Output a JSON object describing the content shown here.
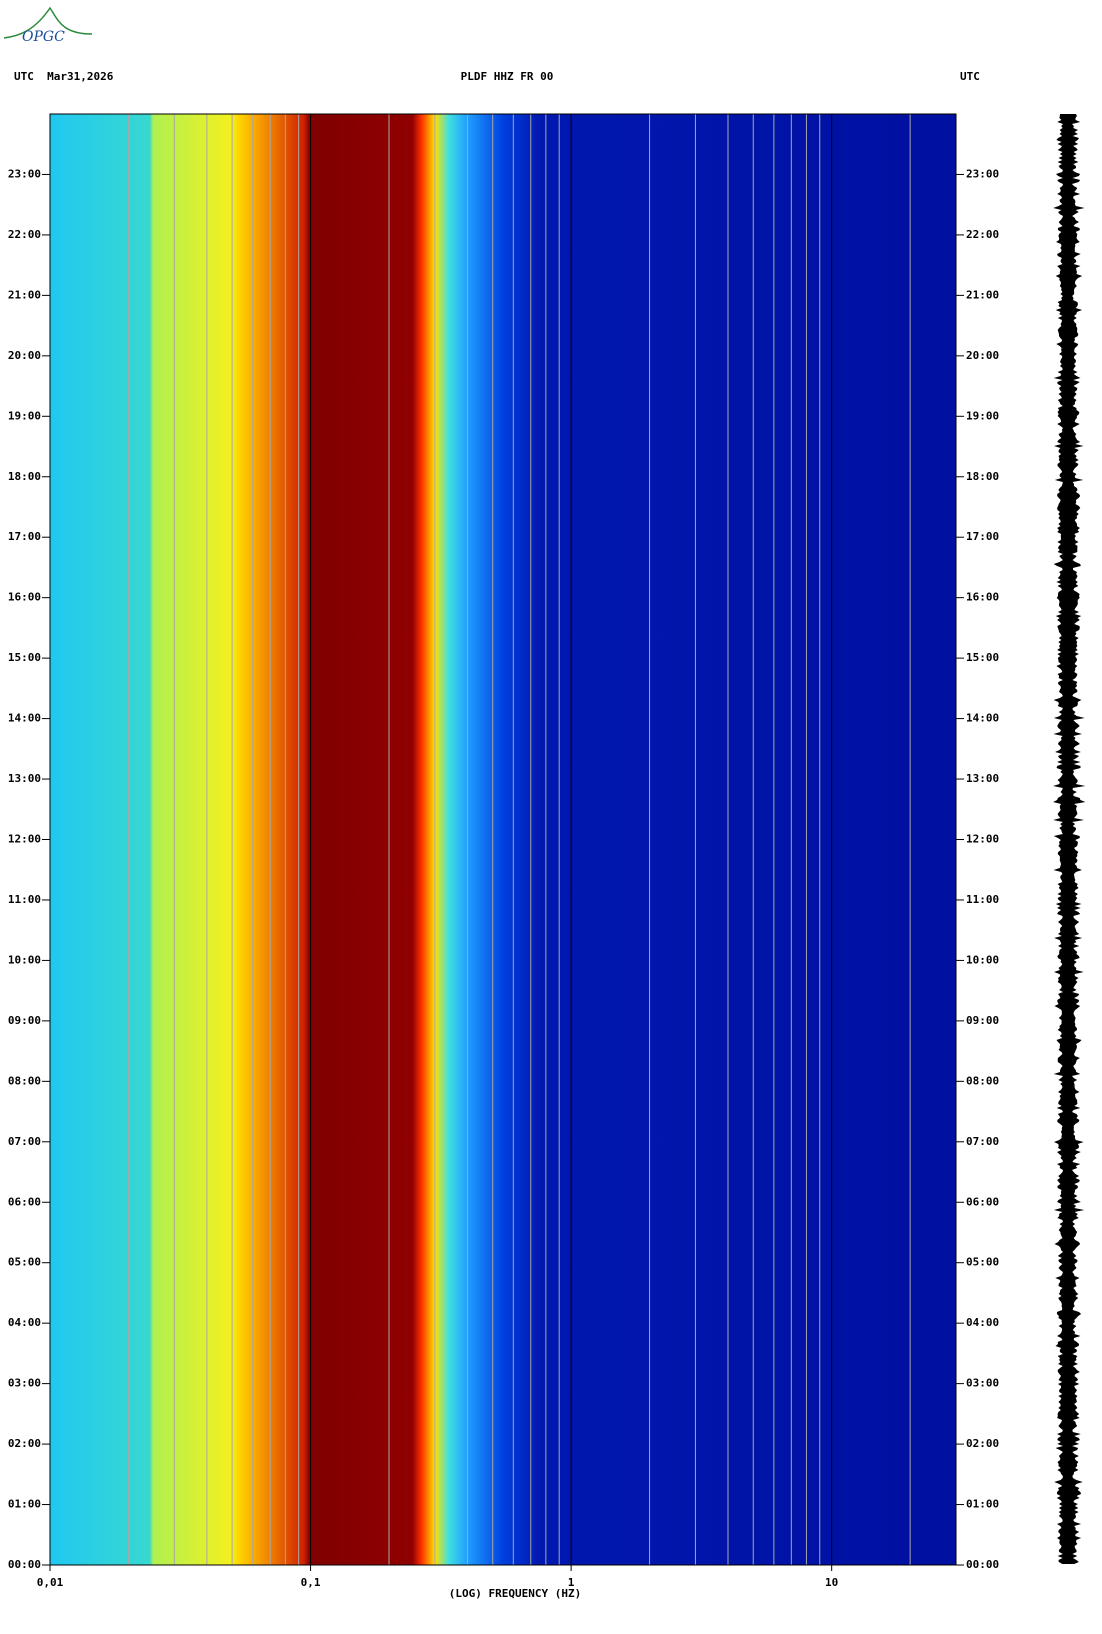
{
  "logo": "OPGC",
  "chart_data": {
    "type": "spectrogram",
    "header_left": "UTC  Mar31,2026",
    "title": "PLDF HHZ FR 00",
    "header_right": "UTC",
    "xlabel": "(LOG) FREQUENCY (HZ)",
    "x_scale": "log",
    "xlim": [
      0.01,
      30
    ],
    "xticks": [
      {
        "value": 0.01,
        "label": "0,01"
      },
      {
        "value": 0.1,
        "label": "0,1"
      },
      1,
      10
    ],
    "x_minor_ticks": [
      0.02,
      0.03,
      0.04,
      0.05,
      0.06,
      0.07,
      0.08,
      0.09,
      0.2,
      0.3,
      0.4,
      0.5,
      0.6,
      0.7,
      0.8,
      0.9,
      2,
      3,
      4,
      5,
      6,
      7,
      8,
      9,
      20
    ],
    "grid": true,
    "ylim": [
      0,
      24
    ],
    "yticks": [
      {
        "value": 0,
        "label": "00:00"
      },
      {
        "value": 1,
        "label": "01:00"
      },
      {
        "value": 2,
        "label": "02:00"
      },
      {
        "value": 3,
        "label": "03:00"
      },
      {
        "value": 4,
        "label": "04:00"
      },
      {
        "value": 5,
        "label": "05:00"
      },
      {
        "value": 6,
        "label": "06:00"
      },
      {
        "value": 7,
        "label": "07:00"
      },
      {
        "value": 8,
        "label": "08:00"
      },
      {
        "value": 9,
        "label": "09:00"
      },
      {
        "value": 10,
        "label": "10:00"
      },
      {
        "value": 11,
        "label": "11:00"
      },
      {
        "value": 12,
        "label": "12:00"
      },
      {
        "value": 13,
        "label": "13:00"
      },
      {
        "value": 14,
        "label": "14:00"
      },
      {
        "value": 15,
        "label": "15:00"
      },
      {
        "value": 16,
        "label": "16:00"
      },
      {
        "value": 17,
        "label": "17:00"
      },
      {
        "value": 18,
        "label": "18:00"
      },
      {
        "value": 19,
        "label": "19:00"
      },
      {
        "value": 20,
        "label": "20:00"
      },
      {
        "value": 21,
        "label": "21:00"
      },
      {
        "value": 22,
        "label": "22:00"
      },
      {
        "value": 23,
        "label": "23:00"
      }
    ]
  }
}
